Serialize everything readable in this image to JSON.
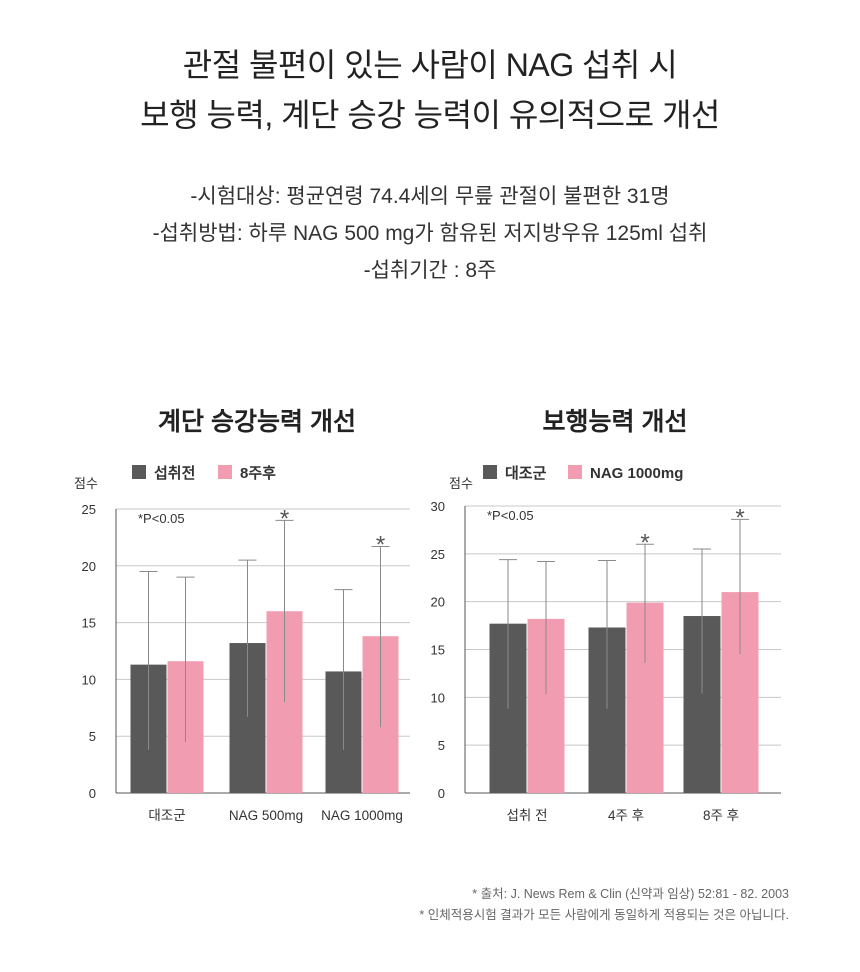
{
  "headline": {
    "line1": "관절 불편이 있는 사람이 NAG 섭취 시",
    "line2": "보행 능력, 계단 승강 능력이 유의적으로 개선"
  },
  "study": {
    "subjects": "-시험대상: 평균연령 74.4세의 무릎 관절이 불편한 31명",
    "method": "-섭취방법: 하루 NAG 500 mg가 함유된 저지방우유 125ml 섭취",
    "period": "-섭취기간 : 8주"
  },
  "colors": {
    "dark": "#595959",
    "pink": "#f19cb0",
    "grid": "#c8c8c8",
    "error": "#8a8a8a"
  },
  "chart_data": [
    {
      "type": "bar",
      "title": "계단 승강능력 개선",
      "ylabel": "점수",
      "ylim": [
        0,
        25
      ],
      "yticks": [
        0,
        5,
        10,
        15,
        20,
        25
      ],
      "grid": true,
      "legend_position": "top",
      "annotation": "*P<0.05",
      "categories": [
        "대조군",
        "NAG 500mg",
        "NAG 1000mg"
      ],
      "series": [
        {
          "name": "섭취전",
          "color": "#595959",
          "values": [
            11.3,
            13.2,
            10.7
          ],
          "err_low": [
            3.8,
            6.7,
            3.8
          ],
          "err_high": [
            19.5,
            20.5,
            17.9
          ]
        },
        {
          "name": "8주후",
          "color": "#f19cb0",
          "values": [
            11.6,
            16.0,
            13.8
          ],
          "err_low": [
            4.5,
            8.0,
            5.8
          ],
          "err_high": [
            19.0,
            24.0,
            21.7
          ]
        }
      ],
      "significance": [
        {
          "category": 1,
          "series": 1,
          "mark": "*"
        },
        {
          "category": 2,
          "series": 1,
          "mark": "*"
        }
      ]
    },
    {
      "type": "bar",
      "title": "보행능력 개선",
      "ylabel": "점수",
      "ylim": [
        0,
        30
      ],
      "yticks": [
        0,
        5,
        10,
        15,
        20,
        25,
        30
      ],
      "grid": true,
      "legend_position": "top",
      "annotation": "*P<0.05",
      "categories": [
        "섭취 전",
        "4주 후",
        "8주 후"
      ],
      "series": [
        {
          "name": "대조군",
          "color": "#595959",
          "values": [
            17.7,
            17.3,
            18.5
          ],
          "err_low": [
            8.8,
            8.8,
            10.4
          ],
          "err_high": [
            24.4,
            24.3,
            25.5
          ]
        },
        {
          "name": "NAG 1000mg",
          "color": "#f19cb0",
          "values": [
            18.2,
            19.9,
            21.0
          ],
          "err_low": [
            10.3,
            13.6,
            14.5
          ],
          "err_high": [
            24.2,
            26.0,
            28.6
          ]
        }
      ],
      "significance": [
        {
          "category": 1,
          "series": 1,
          "mark": "*"
        },
        {
          "category": 2,
          "series": 1,
          "mark": "*"
        }
      ]
    }
  ],
  "source": {
    "line1": "* 출처: J. News Rem & Clin (신약과 임상) 52:81 - 82. 2003",
    "line2": "* 인체적용시험 결과가 모든 사람에게 동일하게 적용되는 것은 아닙니다."
  }
}
